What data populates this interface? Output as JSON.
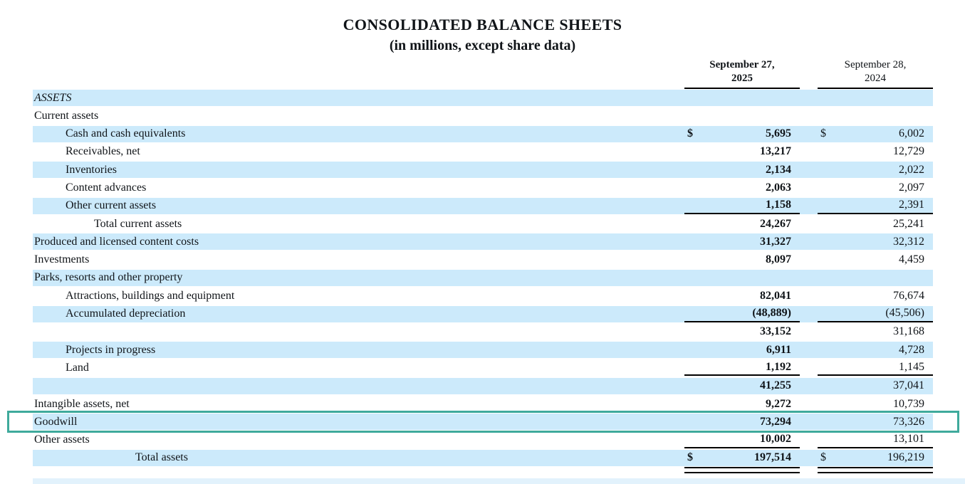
{
  "title": "CONSOLIDATED BALANCE SHEETS",
  "subtitle": "(in millions, except share data)",
  "columns": [
    {
      "line1": "September 27,",
      "line2": "2025",
      "bold": true
    },
    {
      "line1": "September 28,",
      "line2": "2024",
      "bold": false
    }
  ],
  "colors": {
    "row_band": "#cceafb",
    "highlight_border": "#3faa9c",
    "rule": "#000000",
    "bottom_partial_band": "#e2f2fc"
  },
  "section_label": "ASSETS",
  "rows": [
    {
      "label": "ASSETS",
      "indent": 0,
      "band": true,
      "italic": true
    },
    {
      "label": "Current assets",
      "indent": 0,
      "band": false
    },
    {
      "label": "Cash and cash equivalents",
      "indent": 1,
      "band": true,
      "dollar1": "$",
      "val1": "5,695",
      "dollar2": "$",
      "val2": "6,002"
    },
    {
      "label": "Receivables, net",
      "indent": 1,
      "band": false,
      "val1": "13,217",
      "val2": "12,729"
    },
    {
      "label": "Inventories",
      "indent": 1,
      "band": true,
      "val1": "2,134",
      "val2": "2,022"
    },
    {
      "label": "Content advances",
      "indent": 1,
      "band": false,
      "val1": "2,063",
      "val2": "2,097"
    },
    {
      "label": "Other current assets",
      "indent": 1,
      "band": true,
      "val1": "1,158",
      "val2": "2,391",
      "rule": "single"
    },
    {
      "label": "Total current assets",
      "indent": 2,
      "band": false,
      "val1": "24,267",
      "val2": "25,241"
    },
    {
      "label": "Produced and licensed content costs",
      "indent": 0,
      "band": true,
      "val1": "31,327",
      "val2": "32,312"
    },
    {
      "label": "Investments",
      "indent": 0,
      "band": false,
      "val1": "8,097",
      "val2": "4,459"
    },
    {
      "label": "Parks, resorts and other property",
      "indent": 0,
      "band": true
    },
    {
      "label": "Attractions, buildings and equipment",
      "indent": 1,
      "band": false,
      "val1": "82,041",
      "val2": "76,674"
    },
    {
      "label": "Accumulated depreciation",
      "indent": 1,
      "band": true,
      "val1": "(48,889)",
      "val2": "(45,506)",
      "rule": "single"
    },
    {
      "label": "",
      "indent": 0,
      "band": false,
      "val1": "33,152",
      "val2": "31,168"
    },
    {
      "label": "Projects in progress",
      "indent": 1,
      "band": true,
      "val1": "6,911",
      "val2": "4,728"
    },
    {
      "label": "Land",
      "indent": 1,
      "band": false,
      "val1": "1,192",
      "val2": "1,145",
      "rule": "single"
    },
    {
      "label": "",
      "indent": 0,
      "band": true,
      "val1": "41,255",
      "val2": "37,041"
    },
    {
      "label": "Intangible assets, net",
      "indent": 0,
      "band": false,
      "val1": "9,272",
      "val2": "10,739"
    },
    {
      "label": "Goodwill",
      "indent": 0,
      "band": true,
      "highlight": true,
      "val1": "73,294",
      "val2": "73,326"
    },
    {
      "label": "Other assets",
      "indent": 0,
      "band": false,
      "val1": "10,002",
      "val2": "13,101",
      "rule": "single"
    },
    {
      "label": "Total assets",
      "indent": 3,
      "band": true,
      "dollar1": "$",
      "val1": "197,514",
      "dollar2": "$",
      "val2": "196,219",
      "rule": "double"
    }
  ]
}
